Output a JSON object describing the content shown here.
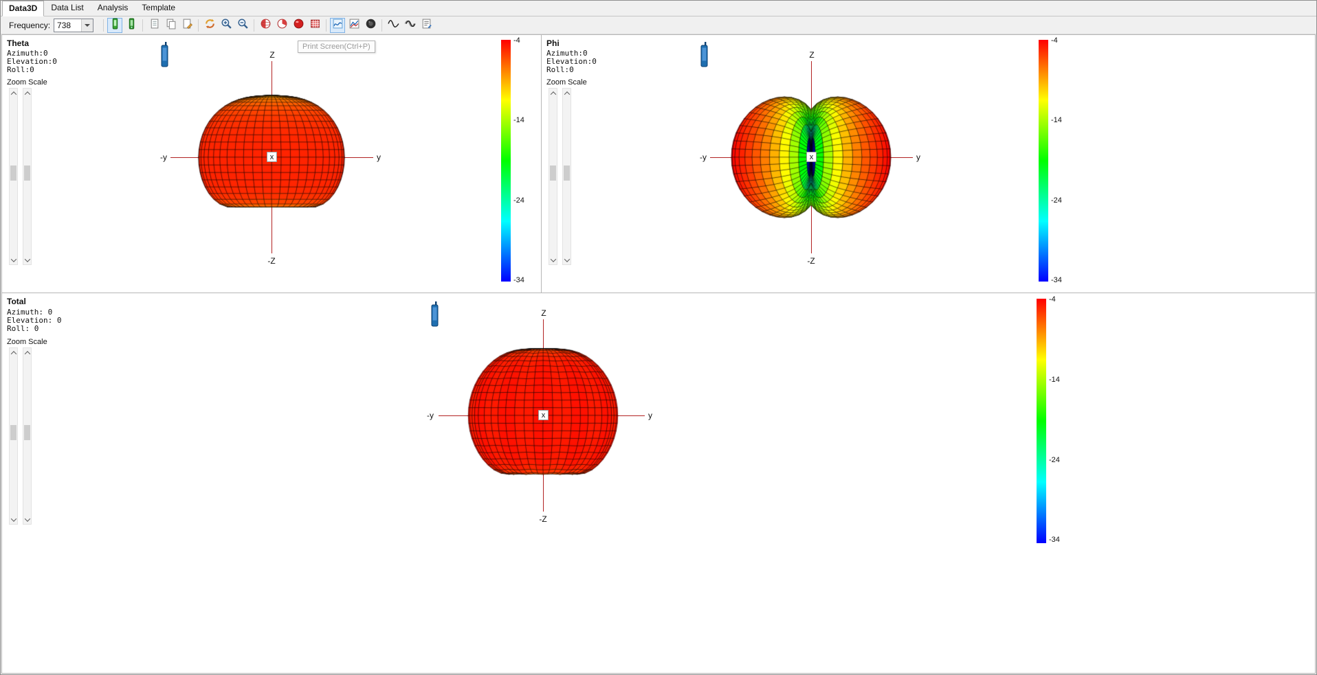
{
  "tabs": [
    {
      "label": "Data3D",
      "active": true
    },
    {
      "label": "Data List",
      "active": false
    },
    {
      "label": "Analysis",
      "active": false
    },
    {
      "label": "Template",
      "active": false
    }
  ],
  "toolbar": {
    "frequency_label": "Frequency:",
    "frequency_value": "738",
    "tooltip": "Print Screen(Ctrl+P)",
    "icons": [
      "phone-green",
      "phone-green-alt",
      "copy-page",
      "copy-pages",
      "edit-page",
      "refresh-arrows",
      "zoom-in",
      "zoom-out",
      "sphere-red",
      "pie-red",
      "ball-red",
      "pattern-red",
      "chart-blue",
      "chart-lines",
      "record-circle",
      "sine-wave",
      "multi-wave",
      "report-list"
    ]
  },
  "panels": [
    {
      "title": "Theta",
      "info": [
        "Azimuth:0",
        "Elevation:0",
        "Roll:0"
      ],
      "zoom_scale_label": "Zoom Scale",
      "axes": {
        "up": "Z",
        "down": "-Z",
        "left": "-y",
        "right": "y",
        "center": "x"
      },
      "colorbar_labels": [
        "-4",
        "-14",
        "-24",
        "-34"
      ]
    },
    {
      "title": "Phi",
      "info": [
        "Azimuth:0",
        "Elevation:0",
        "Roll:0"
      ],
      "zoom_scale_label": "Zoom Scale",
      "axes": {
        "up": "Z",
        "down": "-Z",
        "left": "-y",
        "right": "y",
        "center": "x"
      },
      "colorbar_labels": [
        "-4",
        "-14",
        "-24",
        "-34"
      ]
    },
    {
      "title": "Total",
      "info": [
        "Azimuth: 0",
        "Elevation: 0",
        "Roll: 0"
      ],
      "zoom_scale_label": "Zoom Scale",
      "axes": {
        "up": "Z",
        "down": "-Z",
        "left": "-y",
        "right": "y",
        "center": "x"
      },
      "colorbar_labels": [
        "-4",
        "-14",
        "-24",
        "-34"
      ]
    }
  ],
  "colors": {
    "axis": "#b22222",
    "colorbar": [
      "#ff0000",
      "#ff8000",
      "#ffff00",
      "#80ff00",
      "#00ff00",
      "#00ff80",
      "#00ffff",
      "#0080ff",
      "#0000ff"
    ],
    "phone_icon": "#1f6fb0",
    "toolbar_checked": "#7fb2e5"
  },
  "chart_data": [
    {
      "type": "surface3d",
      "title": "Theta",
      "projection": "front-view-along-x",
      "axis_labels": {
        "up": "Z",
        "down": "-Z",
        "left": "-y",
        "right": "y",
        "toward_viewer": "x"
      },
      "gain_db_max": -4,
      "gain_db_min": -34,
      "colorbar_ticks_db": [
        -4,
        -14,
        -24,
        -34
      ],
      "colormap": "rainbow-red-to-blue",
      "radius_px": 110,
      "model": {
        "kind": "revolution",
        "body_db": -5,
        "top_dip_db": 4.5,
        "top_width": 0.7,
        "bottom_null_db": 22,
        "bottom_width": 0.5,
        "core_db": 14,
        "core_width": 0.18,
        "ripple_db": 0,
        "ripple_n": 0
      }
    },
    {
      "type": "surface3d",
      "title": "Phi",
      "projection": "front-view-along-x",
      "axis_labels": {
        "up": "Z",
        "down": "-Z",
        "left": "-y",
        "right": "y",
        "toward_viewer": "x"
      },
      "gain_db_max": -4,
      "gain_db_min": -34,
      "colorbar_ticks_db": [
        -4,
        -14,
        -24,
        -34
      ],
      "colormap": "rainbow-red-to-blue",
      "radius_px": 116,
      "model": {
        "kind": "sin-phi-lobes",
        "peak_db": -4
      }
    },
    {
      "type": "surface3d",
      "title": "Total",
      "projection": "front-view-along-x",
      "axis_labels": {
        "up": "Z",
        "down": "-Z",
        "left": "-y",
        "right": "y",
        "toward_viewer": "x"
      },
      "gain_db_max": -4,
      "gain_db_min": -34,
      "colorbar_ticks_db": [
        -4,
        -14,
        -24,
        -34
      ],
      "colormap": "rainbow-red-to-blue",
      "radius_px": 110,
      "model": {
        "kind": "revolution",
        "body_db": -4.6,
        "top_dip_db": 3,
        "top_width": 0.45,
        "bottom_null_db": 14,
        "bottom_width": 0.4,
        "core_db": 16,
        "core_width": 0.13,
        "ripple_db": 0.25,
        "ripple_n": 12
      }
    }
  ]
}
